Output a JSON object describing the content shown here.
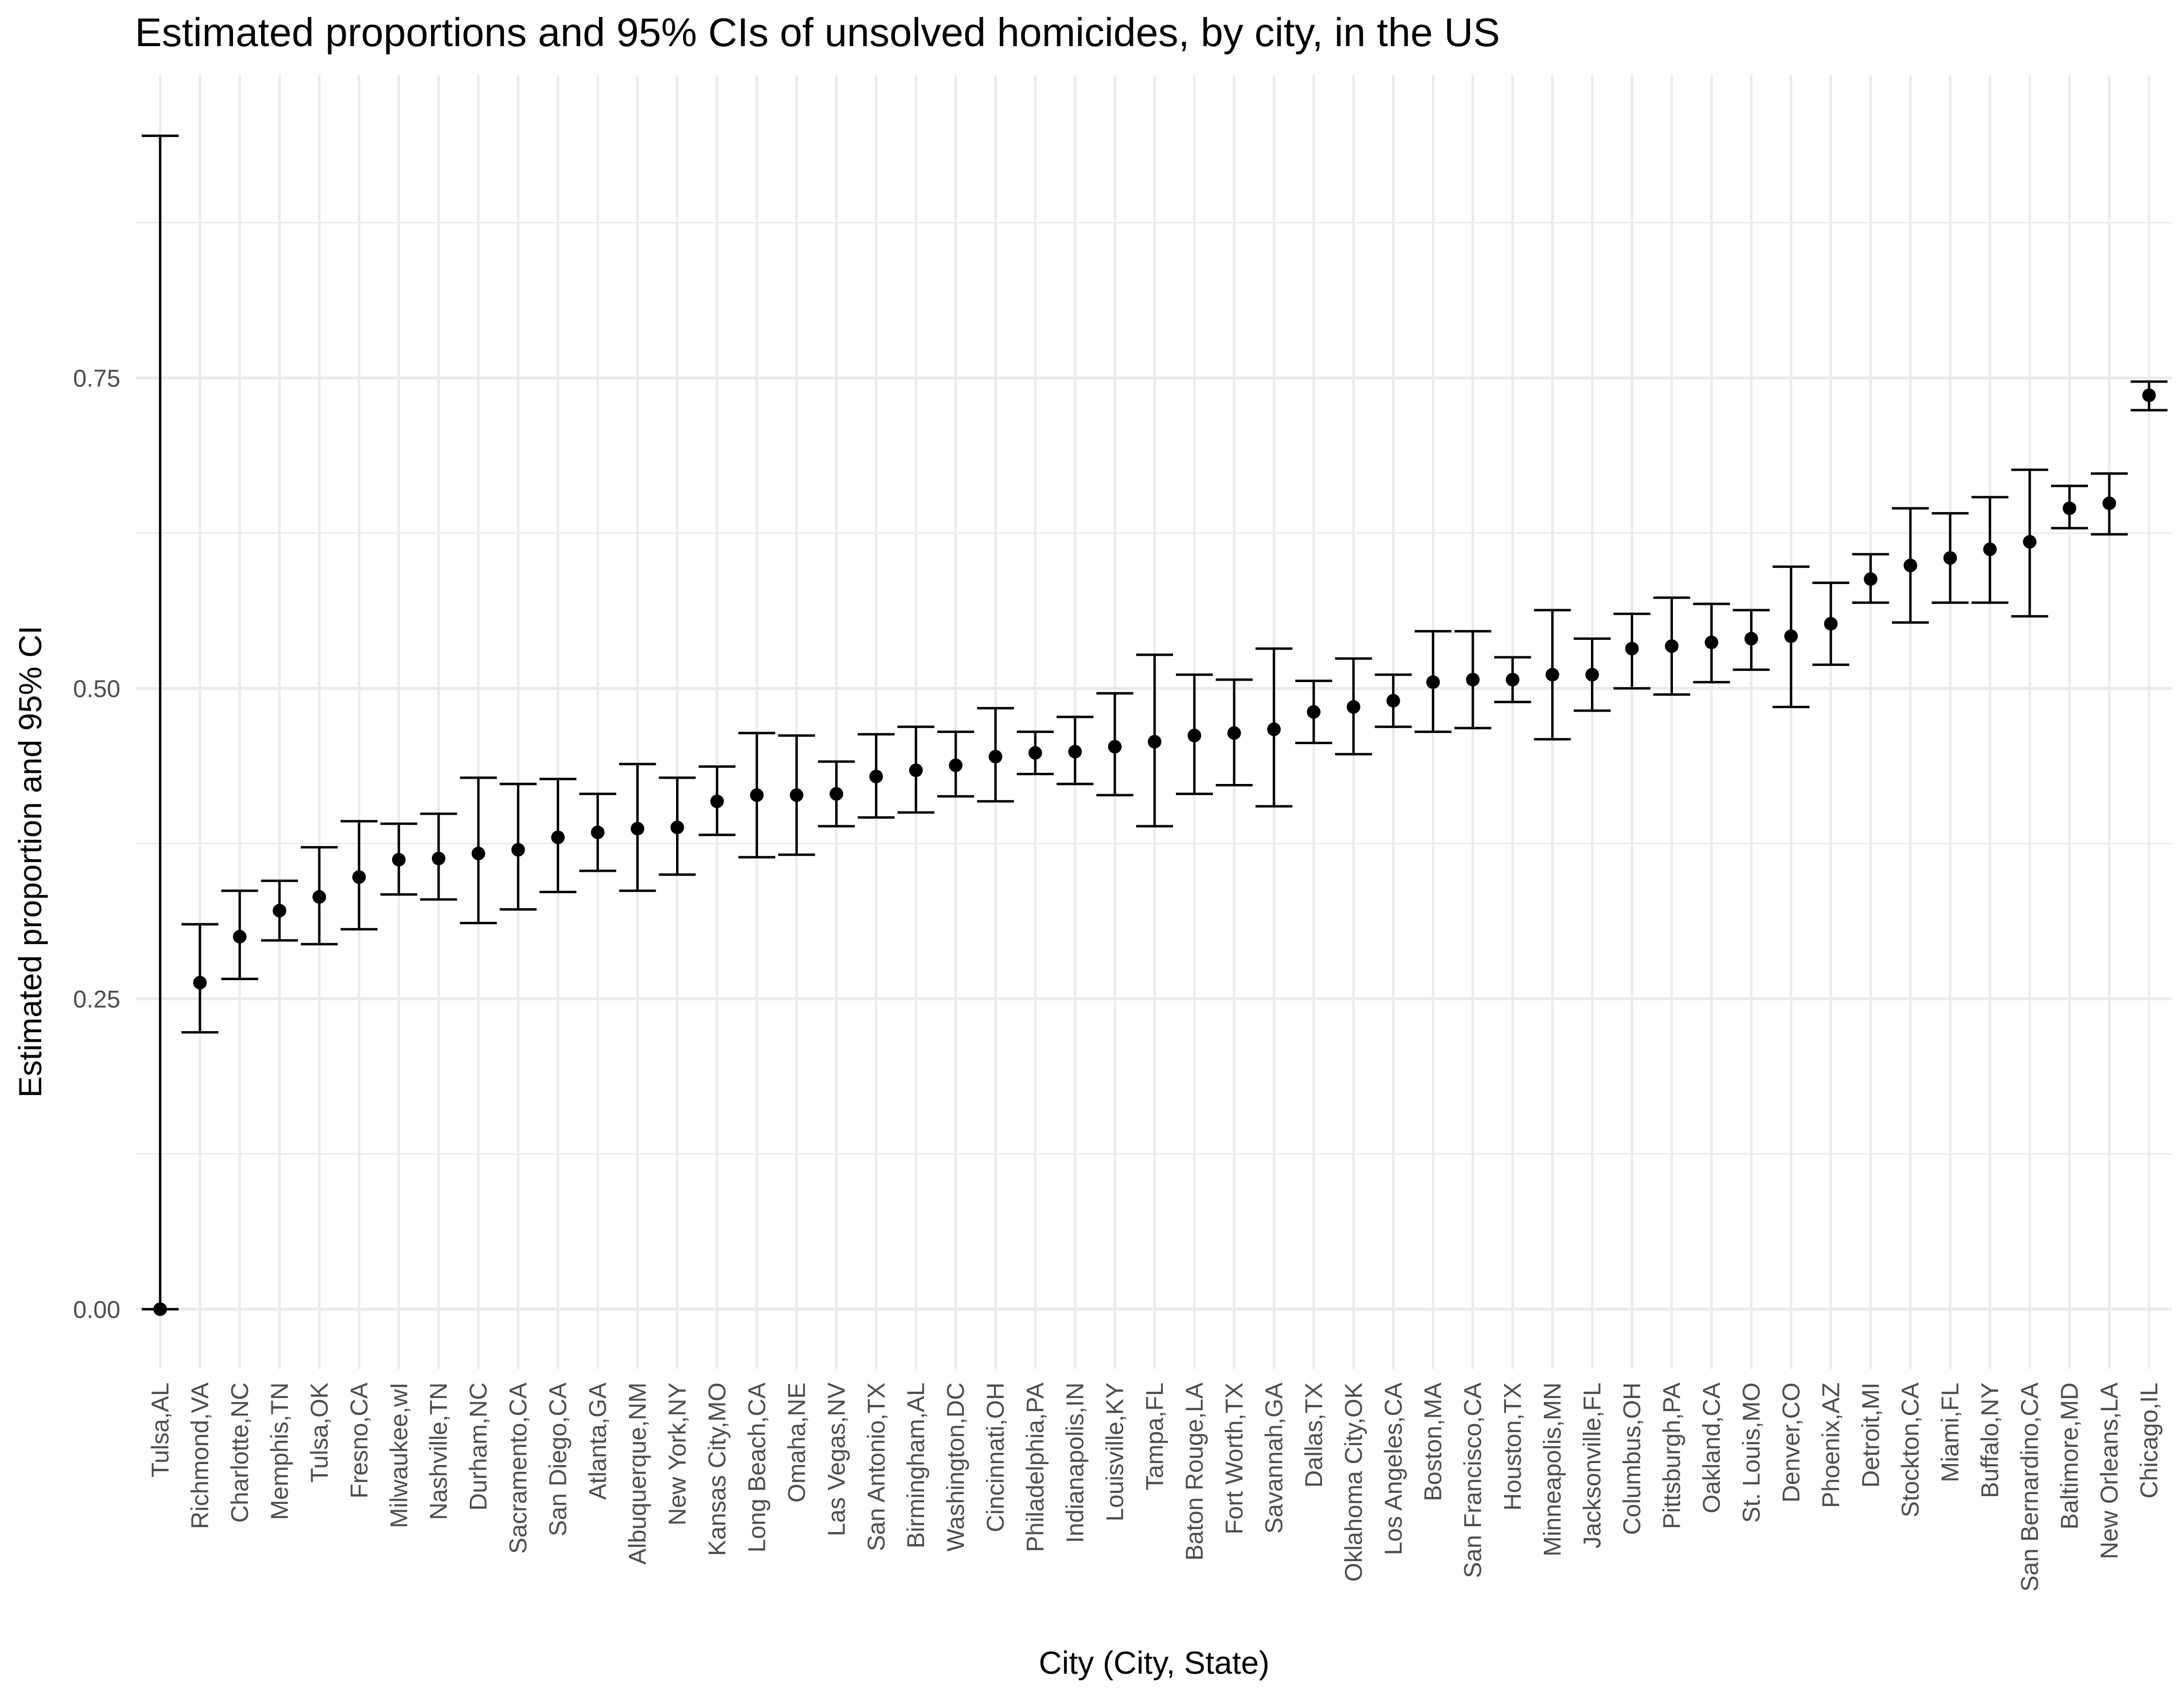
{
  "chart_data": {
    "type": "errorbar",
    "title": "Estimated proportions and 95% CIs of unsolved homicides, by city, in the US",
    "xlabel": "City (City, State)",
    "ylabel": "Estimated proportion and 95% CI",
    "ylim": [
      -0.1,
      0.98
    ],
    "yticks": [
      0.0,
      0.25,
      0.5,
      0.75
    ],
    "ytick_labels": [
      "0.00",
      "0.25",
      "0.50",
      "0.75"
    ],
    "grid": true,
    "categories": [
      "Tulsa,AL",
      "Richmond,VA",
      "Charlotte,NC",
      "Memphis,TN",
      "Tulsa,OK",
      "Fresno,CA",
      "Milwaukee,wI",
      "Nashville,TN",
      "Durham,NC",
      "Sacramento,CA",
      "San Diego,CA",
      "Atlanta,GA",
      "Albuquerque,NM",
      "New York,NY",
      "Kansas City,MO",
      "Long Beach,CA",
      "Omaha,NE",
      "Las Vegas,NV",
      "San Antonio,TX",
      "Birmingham,AL",
      "Washington,DC",
      "Cincinnati,OH",
      "Philadelphia,PA",
      "Indianapolis,IN",
      "Louisville,KY",
      "Tampa,FL",
      "Baton Rouge,LA",
      "Fort Worth,TX",
      "Savannah,GA",
      "Dallas,TX",
      "Oklahoma City,OK",
      "Los Angeles,CA",
      "Boston,MA",
      "San Francisco,CA",
      "Houston,TX",
      "Minneapolis,MN",
      "Jacksonville,FL",
      "Columbus,OH",
      "Pittsburgh,PA",
      "Oakland,CA",
      "St. Louis,MO",
      "Denver,CO",
      "Phoenix,AZ",
      "Detroit,MI",
      "Stockton,CA",
      "Miami,FL",
      "Buffalo,NY",
      "San Bernardino,CA",
      "Baltimore,MD",
      "New Orleans,LA",
      "Chicago,IL"
    ],
    "estimate": [
      0.0,
      0.263,
      0.3,
      0.321,
      0.332,
      0.348,
      0.362,
      0.363,
      0.367,
      0.37,
      0.38,
      0.384,
      0.387,
      0.388,
      0.409,
      0.414,
      0.414,
      0.415,
      0.429,
      0.434,
      0.438,
      0.445,
      0.448,
      0.449,
      0.453,
      0.457,
      0.462,
      0.464,
      0.467,
      0.481,
      0.485,
      0.49,
      0.505,
      0.507,
      0.507,
      0.511,
      0.511,
      0.532,
      0.534,
      0.537,
      0.54,
      0.542,
      0.552,
      0.588,
      0.599,
      0.605,
      0.612,
      0.618,
      0.645,
      0.649,
      0.736
    ],
    "lower": [
      0.0,
      0.223,
      0.266,
      0.297,
      0.294,
      0.306,
      0.334,
      0.33,
      0.311,
      0.322,
      0.336,
      0.353,
      0.337,
      0.35,
      0.382,
      0.364,
      0.366,
      0.389,
      0.396,
      0.4,
      0.413,
      0.409,
      0.431,
      0.423,
      0.414,
      0.389,
      0.415,
      0.422,
      0.405,
      0.456,
      0.447,
      0.469,
      0.465,
      0.468,
      0.489,
      0.459,
      0.482,
      0.5,
      0.495,
      0.505,
      0.515,
      0.485,
      0.519,
      0.569,
      0.553,
      0.569,
      0.569,
      0.558,
      0.629,
      0.624,
      0.724
    ],
    "upper": [
      0.945,
      0.31,
      0.337,
      0.345,
      0.372,
      0.393,
      0.391,
      0.399,
      0.428,
      0.423,
      0.427,
      0.415,
      0.439,
      0.428,
      0.437,
      0.464,
      0.462,
      0.441,
      0.463,
      0.469,
      0.465,
      0.484,
      0.465,
      0.477,
      0.496,
      0.527,
      0.511,
      0.507,
      0.532,
      0.506,
      0.524,
      0.511,
      0.546,
      0.546,
      0.525,
      0.563,
      0.54,
      0.56,
      0.573,
      0.568,
      0.563,
      0.598,
      0.585,
      0.608,
      0.645,
      0.641,
      0.654,
      0.676,
      0.663,
      0.673,
      0.747
    ]
  }
}
